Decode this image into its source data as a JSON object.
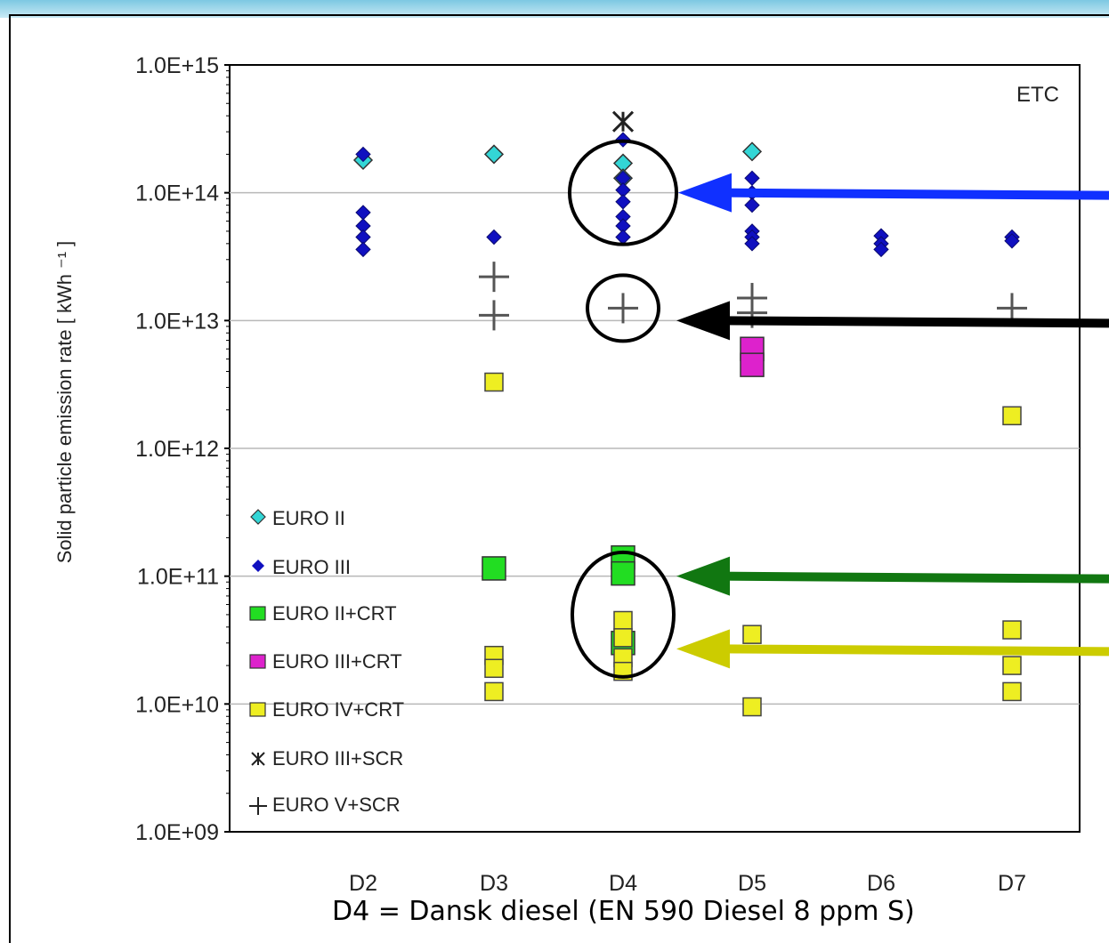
{
  "chart_data": {
    "type": "scatter",
    "ylabel": "Solid particle emission rate [ kWh ⁻¹ ]",
    "y_scale": "log",
    "ylim": [
      1000000000.0,
      1000000000000000.0
    ],
    "y_ticks": [
      "1.0E+09",
      "1.0E+10",
      "1.0E+11",
      "1.0E+12",
      "1.0E+13",
      "1.0E+14",
      "1.0E+15"
    ],
    "categories": [
      "D2",
      "D3",
      "D4",
      "D5",
      "D6",
      "D7"
    ],
    "annotation": "ETC",
    "footnote": "D4 = Dansk diesel (EN 590 Diesel 8 ppm S)",
    "grid": "horizontal at 1.0E+10, 1.0E+11, 1.0E+12, 1.0E+13, 1.0E+14",
    "legend_position": "lower-left",
    "series": [
      {
        "name": "EURO II",
        "marker": "diamond",
        "color": "#33d6d6",
        "points": [
          [
            "D2",
            180000000000000.0
          ],
          [
            "D3",
            200000000000000.0
          ],
          [
            "D4",
            170000000000000.0
          ],
          [
            "D4",
            130000000000000.0
          ],
          [
            "D5",
            210000000000000.0
          ]
        ]
      },
      {
        "name": "EURO III",
        "marker": "diamond-small",
        "color": "#1010c0",
        "points": [
          [
            "D2",
            200000000000000.0
          ],
          [
            "D2",
            70000000000000.0
          ],
          [
            "D2",
            55000000000000.0
          ],
          [
            "D2",
            45000000000000.0
          ],
          [
            "D2",
            36000000000000.0
          ],
          [
            "D3",
            45000000000000.0
          ],
          [
            "D4",
            260000000000000.0
          ],
          [
            "D4",
            130000000000000.0
          ],
          [
            "D4",
            105000000000000.0
          ],
          [
            "D4",
            85000000000000.0
          ],
          [
            "D4",
            65000000000000.0
          ],
          [
            "D4",
            55000000000000.0
          ],
          [
            "D4",
            45000000000000.0
          ],
          [
            "D5",
            130000000000000.0
          ],
          [
            "D5",
            100000000000000.0
          ],
          [
            "D5",
            80000000000000.0
          ],
          [
            "D5",
            50000000000000.0
          ],
          [
            "D5",
            45000000000000.0
          ],
          [
            "D5",
            40000000000000.0
          ],
          [
            "D6",
            46000000000000.0
          ],
          [
            "D6",
            40000000000000.0
          ],
          [
            "D6",
            36000000000000.0
          ],
          [
            "D7",
            45000000000000.0
          ],
          [
            "D7",
            42000000000000.0
          ]
        ]
      },
      {
        "name": "EURO II+CRT",
        "marker": "square",
        "color": "#22dd22",
        "points": [
          [
            "D3",
            115000000000.0
          ],
          [
            "D4",
            140000000000.0
          ],
          [
            "D4",
            105000000000.0
          ],
          [
            "D4",
            30000000000.0
          ]
        ]
      },
      {
        "name": "EURO III+CRT",
        "marker": "square",
        "color": "#dd22cc",
        "points": [
          [
            "D5",
            6000000000000.0
          ],
          [
            "D5",
            4500000000000.0
          ]
        ]
      },
      {
        "name": "EURO IV+CRT",
        "marker": "square-small",
        "color": "#eeee22",
        "points": [
          [
            "D3",
            3300000000000.0
          ],
          [
            "D3",
            24000000000.0
          ],
          [
            "D3",
            19000000000.0
          ],
          [
            "D3",
            12500000000.0
          ],
          [
            "D4",
            45000000000.0
          ],
          [
            "D4",
            33000000000.0
          ],
          [
            "D4",
            23000000000.0
          ],
          [
            "D4",
            18000000000.0
          ],
          [
            "D5",
            35000000000.0
          ],
          [
            "D5",
            9500000000.0
          ],
          [
            "D7",
            1800000000000.0
          ],
          [
            "D7",
            38000000000.0
          ],
          [
            "D7",
            20000000000.0
          ],
          [
            "D7",
            12500000000.0
          ]
        ]
      },
      {
        "name": "EURO III+SCR",
        "marker": "star",
        "color": "#222222",
        "points": [
          [
            "D4",
            360000000000000.0
          ]
        ]
      },
      {
        "name": "EURO V+SCR",
        "marker": "plus",
        "color": "#555555",
        "points": [
          [
            "D3",
            22000000000000.0
          ],
          [
            "D3",
            11000000000000.0
          ],
          [
            "D4",
            12500000000000.0
          ],
          [
            "D5",
            15000000000000.0
          ],
          [
            "D5",
            11500000000000.0
          ],
          [
            "D7",
            12500000000000.0
          ]
        ]
      }
    ],
    "highlight_circles": [
      {
        "category": "D4",
        "y": 100000000000000.0,
        "color": "#000000"
      },
      {
        "category": "D4",
        "y": 12500000000000.0,
        "color": "#000000"
      },
      {
        "category": "D4",
        "y": 50000000000.0,
        "color": "#000000"
      }
    ],
    "arrows": [
      {
        "y": 100000000000000.0,
        "color": "#1030ff"
      },
      {
        "y": 10000000000000.0,
        "color": "#000000"
      },
      {
        "y": 100000000000.0,
        "color": "#117711"
      },
      {
        "y": 27000000000.0,
        "color": "#cccc00"
      }
    ]
  }
}
